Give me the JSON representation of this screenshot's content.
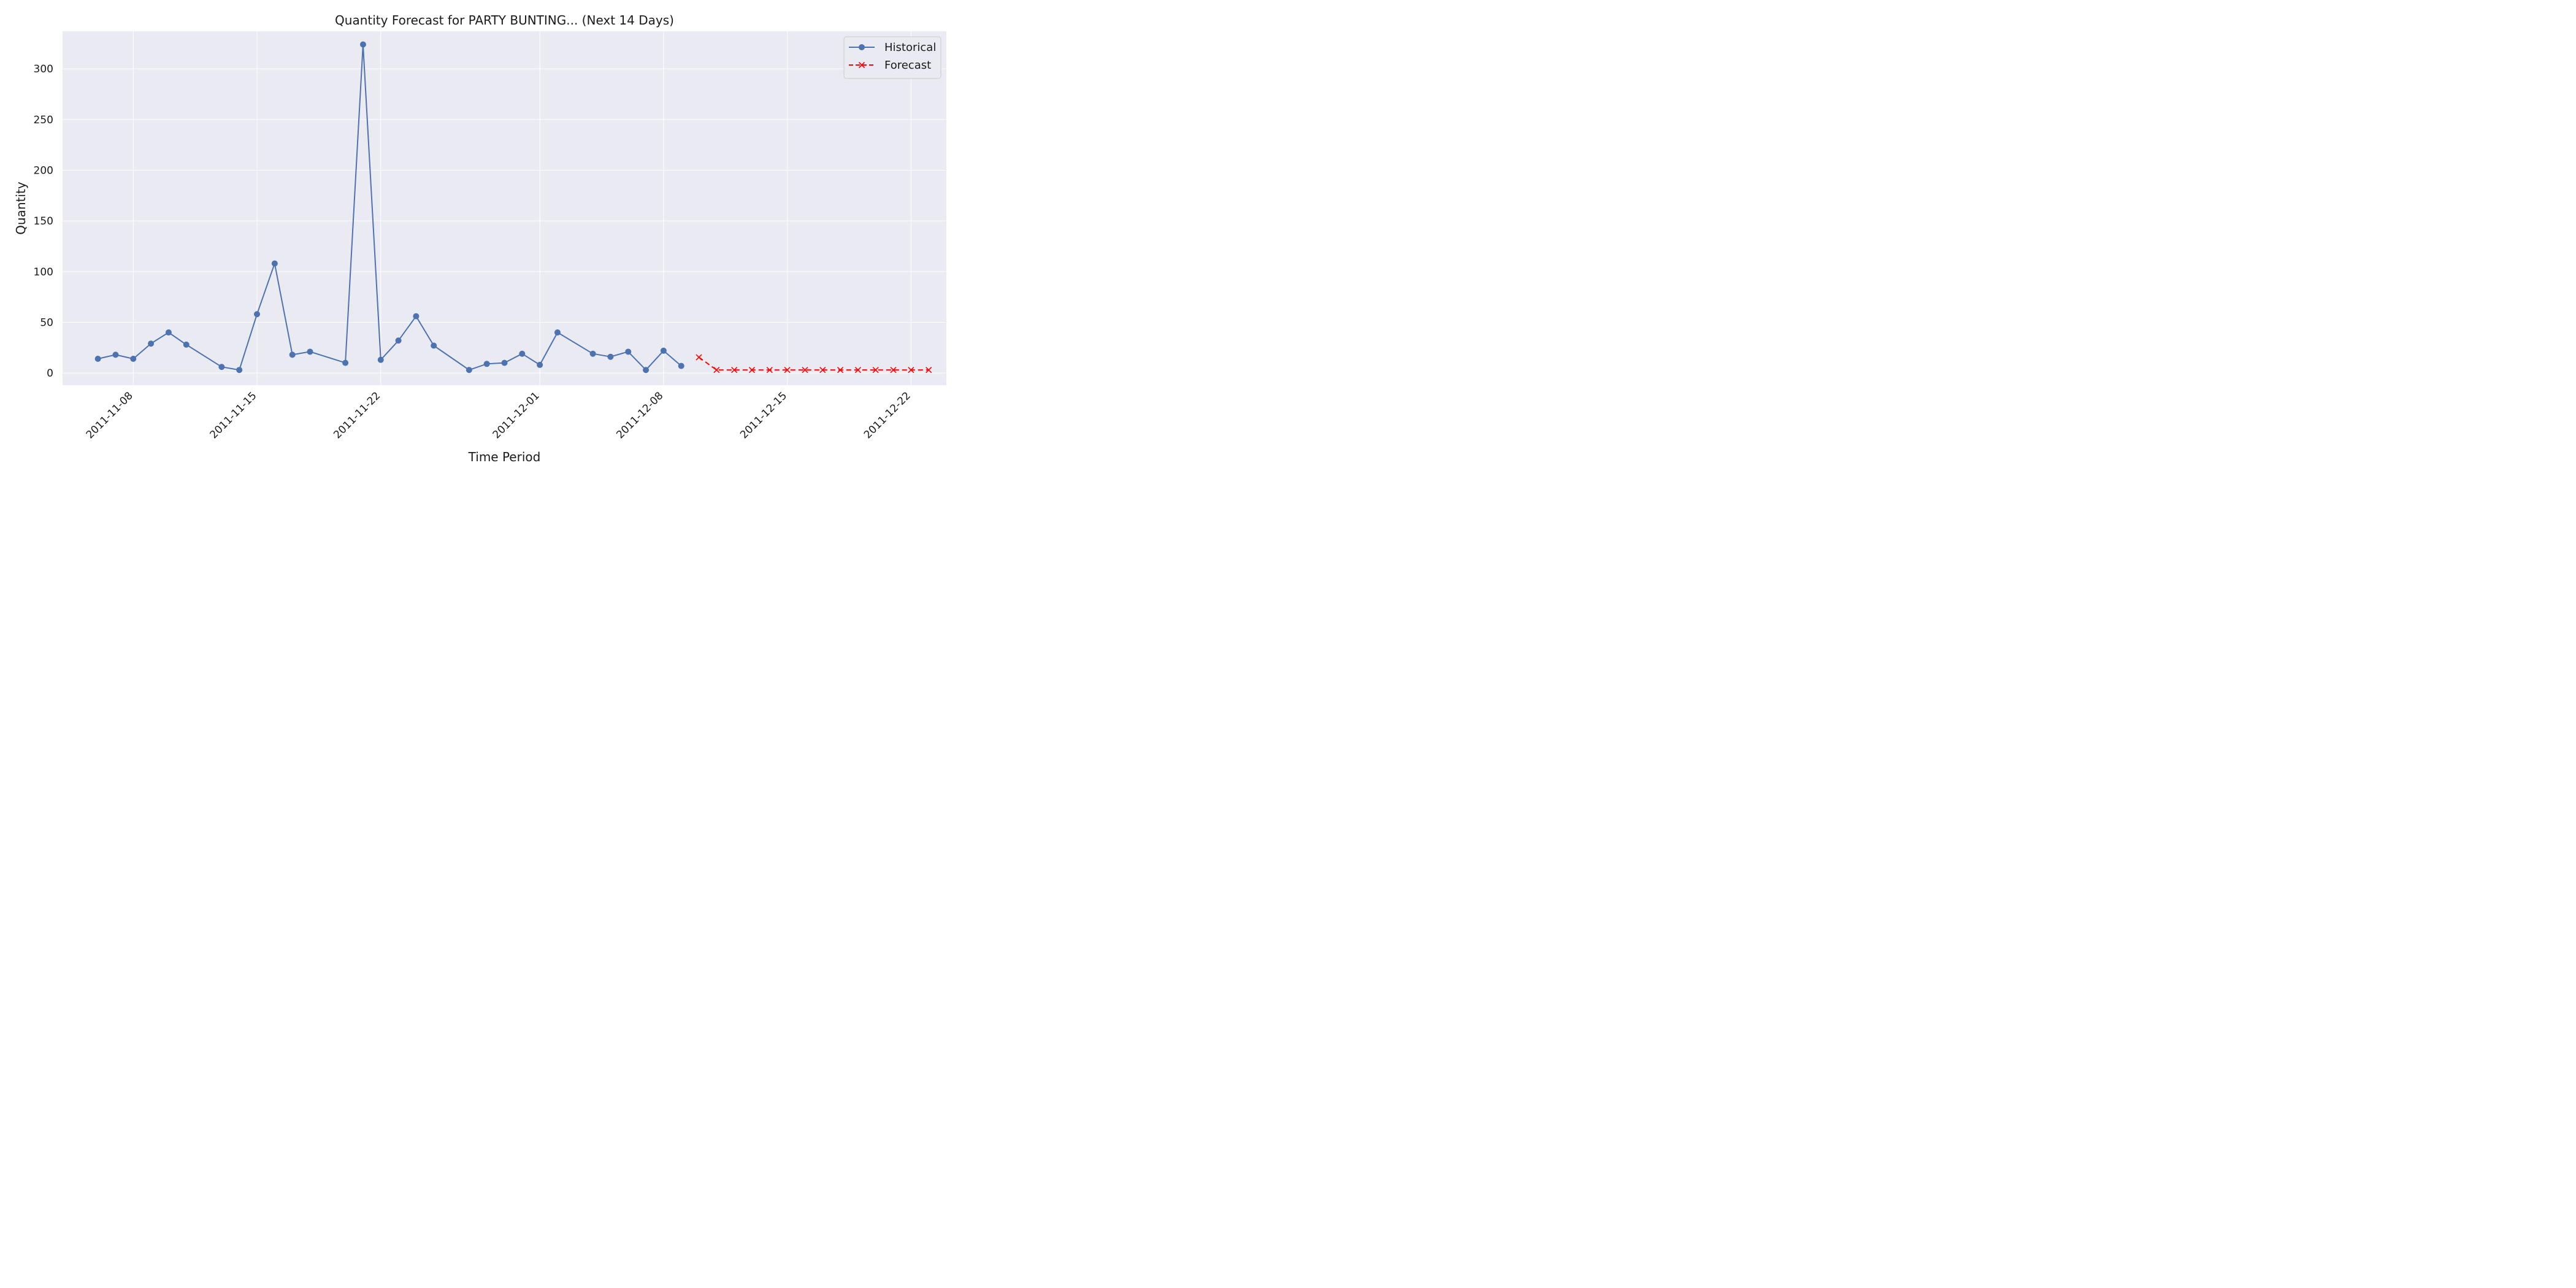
{
  "chart_data": {
    "type": "line",
    "title": "Quantity Forecast for PARTY BUNTING... (Next 14 Days)",
    "xlabel": "Time Period",
    "ylabel": "Quantity",
    "grid": true,
    "legend_position": "top-right",
    "xlim": [
      "2011-11-04",
      "2011-12-24"
    ],
    "ylim": [
      -12,
      337
    ],
    "x_ticks": [
      "2011-11-08",
      "2011-11-15",
      "2011-11-22",
      "2011-12-01",
      "2011-12-08",
      "2011-12-15",
      "2011-12-22"
    ],
    "y_ticks": [
      0,
      50,
      100,
      150,
      200,
      250,
      300
    ],
    "series": [
      {
        "name": "Historical",
        "color": "#4c72b0",
        "marker": "circle",
        "line_style": "solid",
        "points": [
          {
            "x": "2011-11-06",
            "y": 14
          },
          {
            "x": "2011-11-07",
            "y": 18
          },
          {
            "x": "2011-11-08",
            "y": 14
          },
          {
            "x": "2011-11-09",
            "y": 29
          },
          {
            "x": "2011-11-10",
            "y": 40
          },
          {
            "x": "2011-11-11",
            "y": 28
          },
          {
            "x": "2011-11-13",
            "y": 6
          },
          {
            "x": "2011-11-14",
            "y": 3
          },
          {
            "x": "2011-11-15",
            "y": 58
          },
          {
            "x": "2011-11-16",
            "y": 108
          },
          {
            "x": "2011-11-17",
            "y": 18
          },
          {
            "x": "2011-11-18",
            "y": 21
          },
          {
            "x": "2011-11-20",
            "y": 10
          },
          {
            "x": "2011-11-21",
            "y": 324
          },
          {
            "x": "2011-11-22",
            "y": 13
          },
          {
            "x": "2011-11-23",
            "y": 32
          },
          {
            "x": "2011-11-24",
            "y": 56
          },
          {
            "x": "2011-11-25",
            "y": 27
          },
          {
            "x": "2011-11-27",
            "y": 3
          },
          {
            "x": "2011-11-28",
            "y": 9
          },
          {
            "x": "2011-11-29",
            "y": 10
          },
          {
            "x": "2011-11-30",
            "y": 19
          },
          {
            "x": "2011-12-01",
            "y": 8
          },
          {
            "x": "2011-12-02",
            "y": 40
          },
          {
            "x": "2011-12-04",
            "y": 19
          },
          {
            "x": "2011-12-05",
            "y": 16
          },
          {
            "x": "2011-12-06",
            "y": 21
          },
          {
            "x": "2011-12-07",
            "y": 3
          },
          {
            "x": "2011-12-08",
            "y": 22
          },
          {
            "x": "2011-12-09",
            "y": 7
          }
        ]
      },
      {
        "name": "Forecast",
        "color": "#ff0000",
        "marker": "x",
        "line_style": "dashed",
        "points": [
          {
            "x": "2011-12-10",
            "y": 15.5
          },
          {
            "x": "2011-12-11",
            "y": 3
          },
          {
            "x": "2011-12-12",
            "y": 3
          },
          {
            "x": "2011-12-13",
            "y": 3
          },
          {
            "x": "2011-12-14",
            "y": 3
          },
          {
            "x": "2011-12-15",
            "y": 3
          },
          {
            "x": "2011-12-16",
            "y": 3
          },
          {
            "x": "2011-12-17",
            "y": 3
          },
          {
            "x": "2011-12-18",
            "y": 3
          },
          {
            "x": "2011-12-19",
            "y": 3
          },
          {
            "x": "2011-12-20",
            "y": 3
          },
          {
            "x": "2011-12-21",
            "y": 3
          },
          {
            "x": "2011-12-22",
            "y": 3
          },
          {
            "x": "2011-12-23",
            "y": 3
          }
        ]
      }
    ]
  }
}
